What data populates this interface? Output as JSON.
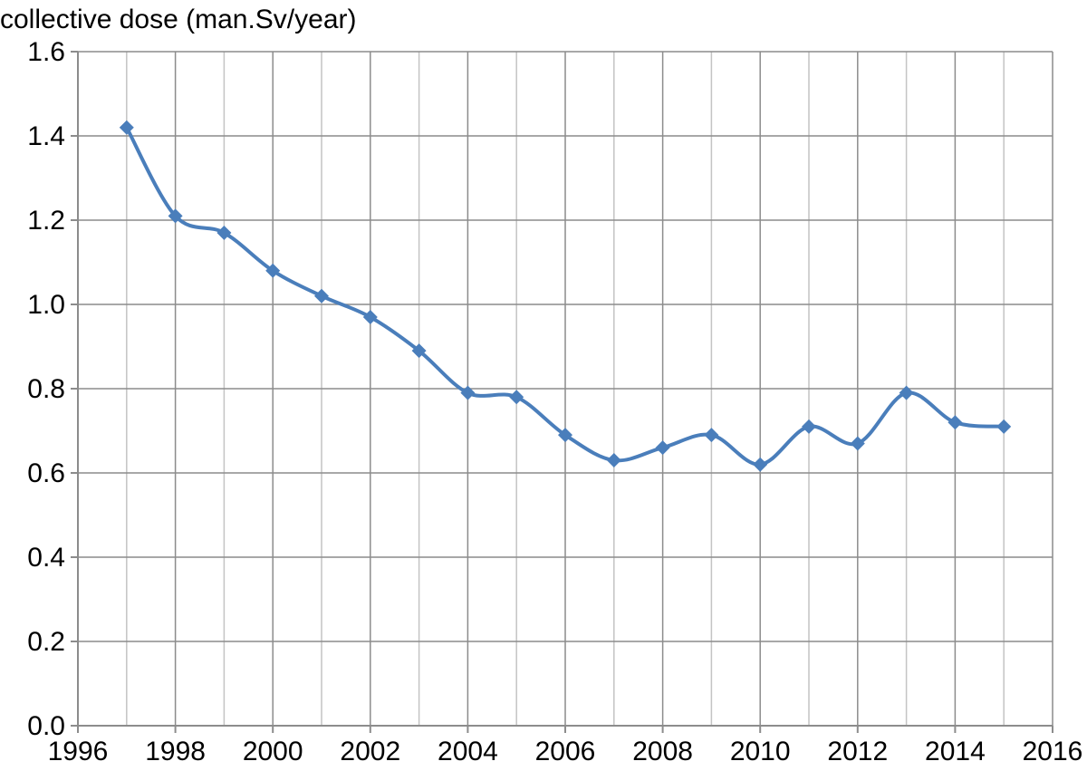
{
  "chart_data": {
    "type": "line",
    "title": "",
    "xlabel": "",
    "ylabel": "collective dose (man.Sv/year)",
    "xlim": [
      1996,
      2016
    ],
    "ylim": [
      0.0,
      1.6
    ],
    "x_ticks": [
      "1996",
      "1998",
      "2000",
      "2002",
      "2004",
      "2006",
      "2008",
      "2010",
      "2012",
      "2014",
      "2016"
    ],
    "y_ticks": [
      "0.0",
      "0.2",
      "0.4",
      "0.6",
      "0.8",
      "1.0",
      "1.2",
      "1.4",
      "1.6"
    ],
    "grid": true,
    "smooth": true,
    "marker": "diamond",
    "series": [
      {
        "color": "#4a7ebb",
        "x": [
          1997,
          1998,
          1999,
          2000,
          2001,
          2002,
          2003,
          2004,
          2005,
          2006,
          2007,
          2008,
          2009,
          2010,
          2011,
          2012,
          2013,
          2014,
          2015
        ],
        "y": [
          1.42,
          1.21,
          1.17,
          1.08,
          1.02,
          0.97,
          0.89,
          0.79,
          0.78,
          0.69,
          0.63,
          0.66,
          0.69,
          0.62,
          0.71,
          0.67,
          0.79,
          0.72,
          0.71
        ]
      }
    ]
  }
}
